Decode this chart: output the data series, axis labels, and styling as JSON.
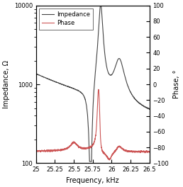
{
  "freq_min": 25.0,
  "freq_max": 26.5,
  "impedance_ylim": [
    100,
    10000
  ],
  "phase_ylim": [
    -100,
    100
  ],
  "xlabel": "Frequency, kHz",
  "ylabel_left": "Impedance, Ω",
  "ylabel_right": "Phase, °",
  "impedance_color": "#444444",
  "phase_color": "#cc5555",
  "legend_labels": [
    "Impedance",
    "Phase"
  ],
  "xticks": [
    25,
    25.25,
    25.5,
    25.75,
    26,
    26.25,
    26.5
  ],
  "yticks_left": [
    100,
    1000,
    10000
  ],
  "yticks_right": [
    -100,
    -80,
    -60,
    -40,
    -20,
    0,
    20,
    40,
    60,
    80,
    100
  ],
  "figsize": [
    2.58,
    2.64
  ],
  "dpi": 100
}
